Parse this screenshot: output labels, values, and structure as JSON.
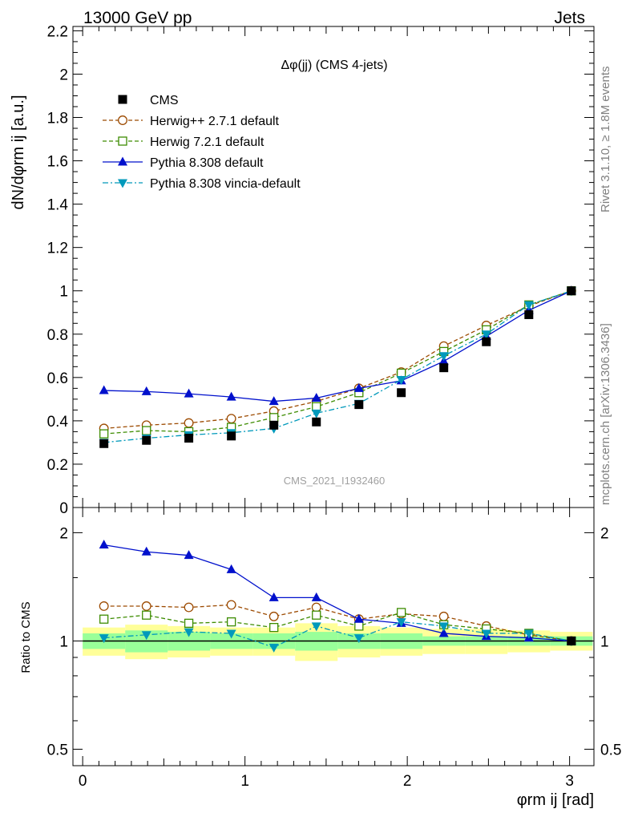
{
  "header": {
    "energy": "13000 GeV pp",
    "process": "Jets",
    "plot_title": "Δφ(jj) (CMS 4-jets)",
    "analysis_id": "CMS_2021_I1932460",
    "side_rivet": "Rivet 3.1.10, ≥ 1.8M events",
    "side_ref": "mcplots.cern.ch [arXiv:1306.3436]"
  },
  "colors": {
    "cms": "#000000",
    "herwigpp": "#9c4a00",
    "herwig7": "#3d8c00",
    "pythia": "#0010cc",
    "vincia": "#0099bb",
    "band_outer": "#ffff99",
    "band_inner": "#99ff99"
  },
  "chart_data": [
    {
      "type": "scatter",
      "panel": "main",
      "ylabel": "dN/dφrm ij [a.u.]",
      "ylim": [
        0,
        2.22
      ],
      "yticks": [
        "0",
        "0.2",
        "0.4",
        "0.6",
        "0.8",
        "1",
        "1.2",
        "1.4",
        "1.6",
        "1.8",
        "2",
        "2.2"
      ],
      "x": [
        0.131,
        0.393,
        0.654,
        0.916,
        1.178,
        1.44,
        1.702,
        1.963,
        2.225,
        2.487,
        2.749,
        3.011
      ],
      "series": [
        {
          "name": "CMS",
          "key": "cms",
          "marker": "square-filled",
          "values": [
            0.295,
            0.31,
            0.32,
            0.33,
            0.38,
            0.395,
            0.475,
            0.53,
            0.645,
            0.765,
            0.89,
            1.0
          ]
        },
        {
          "name": "Herwig++ 2.7.1 default",
          "key": "herwigpp",
          "marker": "circle-open",
          "line": "dashed",
          "values": [
            0.365,
            0.38,
            0.39,
            0.41,
            0.445,
            0.49,
            0.55,
            0.625,
            0.745,
            0.84,
            0.93,
            1.0
          ]
        },
        {
          "name": "Herwig 7.2.1 default",
          "key": "herwig7",
          "marker": "square-open",
          "line": "dashed",
          "values": [
            0.34,
            0.355,
            0.35,
            0.37,
            0.415,
            0.465,
            0.53,
            0.62,
            0.72,
            0.82,
            0.935,
            1.0
          ]
        },
        {
          "name": "Pythia 8.308 default",
          "key": "pythia",
          "marker": "triangle-up",
          "line": "solid",
          "values": [
            0.54,
            0.535,
            0.525,
            0.51,
            0.49,
            0.505,
            0.55,
            0.585,
            0.675,
            0.79,
            0.91,
            1.0
          ]
        },
        {
          "name": "Pythia 8.308 vincia-default",
          "key": "vincia",
          "marker": "triangle-down",
          "line": "dashdot",
          "values": [
            0.3,
            0.32,
            0.335,
            0.345,
            0.365,
            0.435,
            0.48,
            0.59,
            0.7,
            0.8,
            0.935,
            1.0
          ]
        }
      ]
    },
    {
      "type": "scatter",
      "panel": "ratio",
      "ylabel": "Ratio to CMS",
      "xlabel": "φrm ij [rad]",
      "yscale": "log",
      "ylim": [
        0.45,
        2.35
      ],
      "xlim": [
        -0.06,
        3.15
      ],
      "yticks": [
        "0.5",
        "1",
        "2"
      ],
      "xticks": [
        "0",
        "1",
        "2",
        "3"
      ],
      "x": [
        0.131,
        0.393,
        0.654,
        0.916,
        1.178,
        1.44,
        1.702,
        1.963,
        2.225,
        2.487,
        2.749,
        3.011
      ],
      "band_edges": [
        0,
        0.262,
        0.524,
        0.785,
        1.047,
        1.309,
        1.571,
        1.833,
        2.094,
        2.356,
        2.618,
        2.88,
        3.142
      ],
      "band_outer": [
        0.09,
        0.11,
        0.1,
        0.09,
        0.09,
        0.12,
        0.1,
        0.09,
        0.08,
        0.08,
        0.07,
        0.06
      ],
      "band_inner": [
        0.05,
        0.07,
        0.06,
        0.05,
        0.05,
        0.06,
        0.05,
        0.05,
        0.03,
        0.03,
        0.03,
        0.03
      ],
      "series": [
        {
          "name": "Herwig++ 2.7.1 default",
          "key": "herwigpp",
          "marker": "circle-open",
          "line": "dashed",
          "values": [
            1.25,
            1.25,
            1.24,
            1.26,
            1.17,
            1.24,
            1.15,
            1.19,
            1.17,
            1.1,
            1.04,
            1.0
          ]
        },
        {
          "name": "Herwig 7.2.1 default",
          "key": "herwig7",
          "marker": "square-open",
          "line": "dashed",
          "values": [
            1.15,
            1.18,
            1.12,
            1.13,
            1.09,
            1.18,
            1.1,
            1.2,
            1.11,
            1.08,
            1.05,
            1.0
          ]
        },
        {
          "name": "Pythia 8.308 default",
          "key": "pythia",
          "marker": "triangle-up",
          "line": "solid",
          "values": [
            1.85,
            1.77,
            1.73,
            1.58,
            1.32,
            1.32,
            1.15,
            1.12,
            1.05,
            1.03,
            1.02,
            1.0
          ]
        },
        {
          "name": "Pythia 8.308 vincia-default",
          "key": "vincia",
          "marker": "triangle-down",
          "line": "dashdot",
          "values": [
            1.02,
            1.04,
            1.06,
            1.05,
            0.96,
            1.1,
            1.02,
            1.13,
            1.1,
            1.05,
            1.05,
            1.0
          ]
        }
      ]
    }
  ]
}
